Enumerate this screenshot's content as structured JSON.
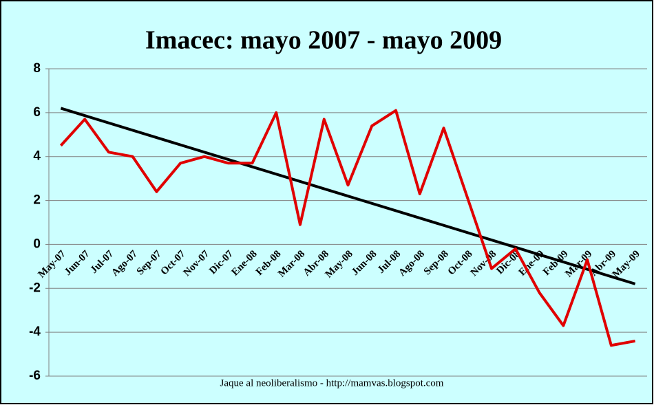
{
  "chart_data": {
    "type": "line",
    "title": "Imacec: mayo 2007 - mayo 2009",
    "footer": "Jaque al neoliberalismo - http://mamvas.blogspot.com",
    "categories": [
      "May-07",
      "Jun-07",
      "Jul-07",
      "Ago-07",
      "Sep-07",
      "Oct-07",
      "Nov-07",
      "Dic-07",
      "Ene-08",
      "Feb-08",
      "Mar-08",
      "Abr-08",
      "May-08",
      "Jun-08",
      "Jul-08",
      "Ago-08",
      "Sep-08",
      "Oct-08",
      "Nov-08",
      "Dic-08",
      "Ene-09",
      "Feb-09",
      "Mar-09",
      "Abr-09",
      "May-09"
    ],
    "series": [
      {
        "color": "#e00000",
        "values": [
          4.5,
          5.7,
          4.2,
          4.0,
          2.4,
          3.7,
          4.0,
          3.7,
          3.7,
          6.0,
          0.9,
          5.7,
          2.7,
          5.4,
          6.1,
          2.3,
          5.3,
          2.1,
          -1.1,
          -0.2,
          -2.2,
          -3.7,
          -0.7,
          -4.6,
          -4.4
        ]
      }
    ],
    "trendline": {
      "color": "#000000",
      "start": 6.2,
      "end": -1.8
    },
    "ylim": [
      -6,
      8
    ],
    "yticks": [
      -6,
      -4,
      -2,
      0,
      2,
      4,
      6,
      8
    ],
    "grid": true
  }
}
